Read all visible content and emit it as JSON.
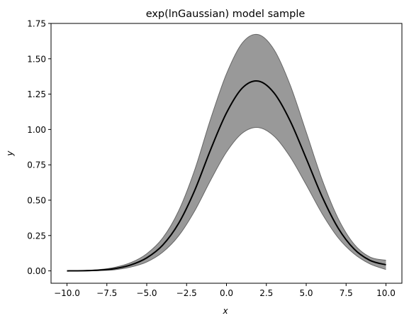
{
  "chart_data": {
    "type": "area",
    "title": "exp(lnGaussian) model sample",
    "xlabel": "x",
    "ylabel": "y",
    "xlim": [
      -11.0,
      11.0
    ],
    "ylim": [
      -0.0875,
      1.75
    ],
    "xticks": [
      -10.0,
      -7.5,
      -5.0,
      -2.5,
      0.0,
      2.5,
      5.0,
      7.5,
      10.0
    ],
    "xtick_labels": [
      "−10.0",
      "−7.5",
      "−5.0",
      "−2.5",
      "0.0",
      "2.5",
      "5.0",
      "7.5",
      "10.0"
    ],
    "yticks": [
      0.0,
      0.25,
      0.5,
      0.75,
      1.0,
      1.25,
      1.5,
      1.75
    ],
    "ytick_labels": [
      "0.00",
      "0.25",
      "0.50",
      "0.75",
      "1.00",
      "1.25",
      "1.50",
      "1.75"
    ],
    "grid": false,
    "x": [
      -10,
      -9,
      -8,
      -7,
      -6,
      -5,
      -4,
      -3,
      -2,
      -1,
      0,
      1,
      2,
      3,
      4,
      5,
      6,
      7,
      8,
      9,
      10
    ],
    "series": [
      {
        "role": "mean",
        "values": [
          0.0,
          0.001,
          0.005,
          0.016,
          0.042,
          0.092,
          0.182,
          0.336,
          0.567,
          0.856,
          1.117,
          1.294,
          1.342,
          1.256,
          1.059,
          0.795,
          0.524,
          0.303,
          0.155,
          0.074,
          0.043
        ],
        "color": "#000000"
      },
      {
        "role": "upper",
        "values": [
          0.001,
          0.003,
          0.009,
          0.025,
          0.058,
          0.121,
          0.232,
          0.424,
          0.711,
          1.072,
          1.393,
          1.613,
          1.671,
          1.561,
          1.312,
          0.981,
          0.644,
          0.371,
          0.189,
          0.098,
          0.075
        ]
      },
      {
        "role": "lower",
        "values": [
          0.0,
          0.0,
          0.002,
          0.008,
          0.027,
          0.063,
          0.132,
          0.248,
          0.423,
          0.64,
          0.84,
          0.975,
          1.014,
          0.951,
          0.805,
          0.609,
          0.404,
          0.235,
          0.121,
          0.049,
          0.01
        ]
      }
    ],
    "band_fill": "#999999",
    "band_edge": "#666666"
  }
}
